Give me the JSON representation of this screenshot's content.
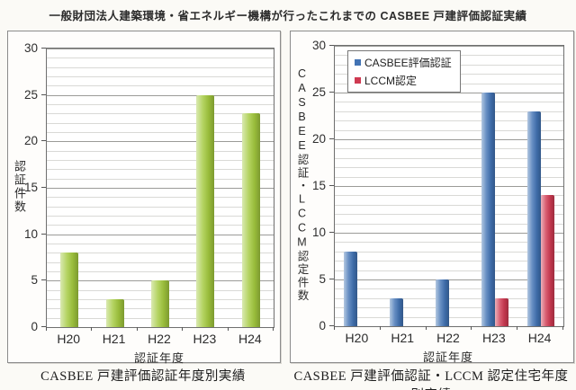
{
  "page_title": "一般財団法人建築環境・省エネルギー機構が行ったこれまでの CASBEE 戸建評価認証実績",
  "colors": {
    "green_bar": "#a3c93e",
    "blue_bar": "#4273b4",
    "red_bar": "#cf3a52",
    "grid_minor": "#d9d9d6",
    "grid_major": "#9b9b98",
    "plot_border": "#6f6f6f"
  },
  "chart_data": [
    {
      "type": "bar",
      "title": "CASBEE 戸建評価認証年度別実績",
      "categories": [
        "H20",
        "H21",
        "H22",
        "H23",
        "H24"
      ],
      "series": [
        {
          "name": "認証件数",
          "color": "#a3c93e",
          "values": [
            8,
            3,
            5,
            25,
            23
          ]
        }
      ],
      "xlabel": "認証年度",
      "ylabel": "認証件数",
      "ylim": [
        0,
        30
      ],
      "ytick_step": 5,
      "minor_step": 1,
      "grid": true,
      "legend": false
    },
    {
      "type": "bar",
      "title": "CASBEE 戸建評価認証・LCCM 認定住宅年度別実績",
      "categories": [
        "H20",
        "H21",
        "H22",
        "H23",
        "H24"
      ],
      "series": [
        {
          "name": "CASBEE評価認証",
          "color": "#4273b4",
          "values": [
            8,
            3,
            5,
            25,
            23
          ]
        },
        {
          "name": "LCCM認定",
          "color": "#cf3a52",
          "values": [
            0,
            0,
            0,
            3,
            14
          ]
        }
      ],
      "xlabel": "認証年度",
      "ylabel": "CASBEE認証・LCCM認定件数",
      "ylim": [
        0,
        30
      ],
      "ytick_step": 5,
      "minor_step": 1,
      "grid": true,
      "legend": true,
      "legend_position": "top-left"
    }
  ]
}
